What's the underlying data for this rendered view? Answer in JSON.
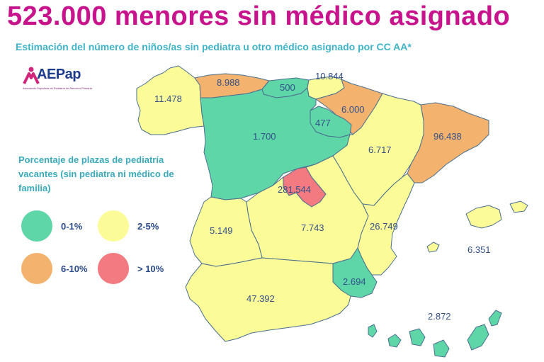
{
  "title": "523.000 menores sin médico asignado",
  "subtitle": "Estimación del número de niños/as sin pediatra u otro médico asignado por CC AA*",
  "logo": {
    "name": "AEPap",
    "tagline": "Asociación Española de Pediatría de Atención Primaria"
  },
  "legend": {
    "title": "Porcentaje de plazas de pediatría vacantes (sin pediatra ni médico de familia)",
    "items": [
      {
        "label": "0-1%",
        "color": "#5ed6a8"
      },
      {
        "label": "2-5%",
        "color": "#fbfb98"
      },
      {
        "label": "6-10%",
        "color": "#f3b36e"
      },
      {
        "label": "> 10%",
        "color": "#f37a80"
      }
    ]
  },
  "colors": {
    "title": "#c8148c",
    "subtitle": "#3fb3c8",
    "value_text": "#33508a",
    "border": "#4a6f8f"
  },
  "values": {
    "galicia": "11.478",
    "asturias": "8.988",
    "cantabria": "500",
    "pais_vasco": "10.844",
    "navarra": "6.000",
    "la_rioja": "477",
    "castilla_leon": "1.700",
    "aragon": "6.717",
    "cataluna": "96.438",
    "madrid": "281.544",
    "extremadura": "5.149",
    "castilla_la_mancha": "7.743",
    "valencia": "26.749",
    "baleares": "6.351",
    "murcia": "2.694",
    "andalucia": "47.392",
    "canarias": "2.872"
  }
}
